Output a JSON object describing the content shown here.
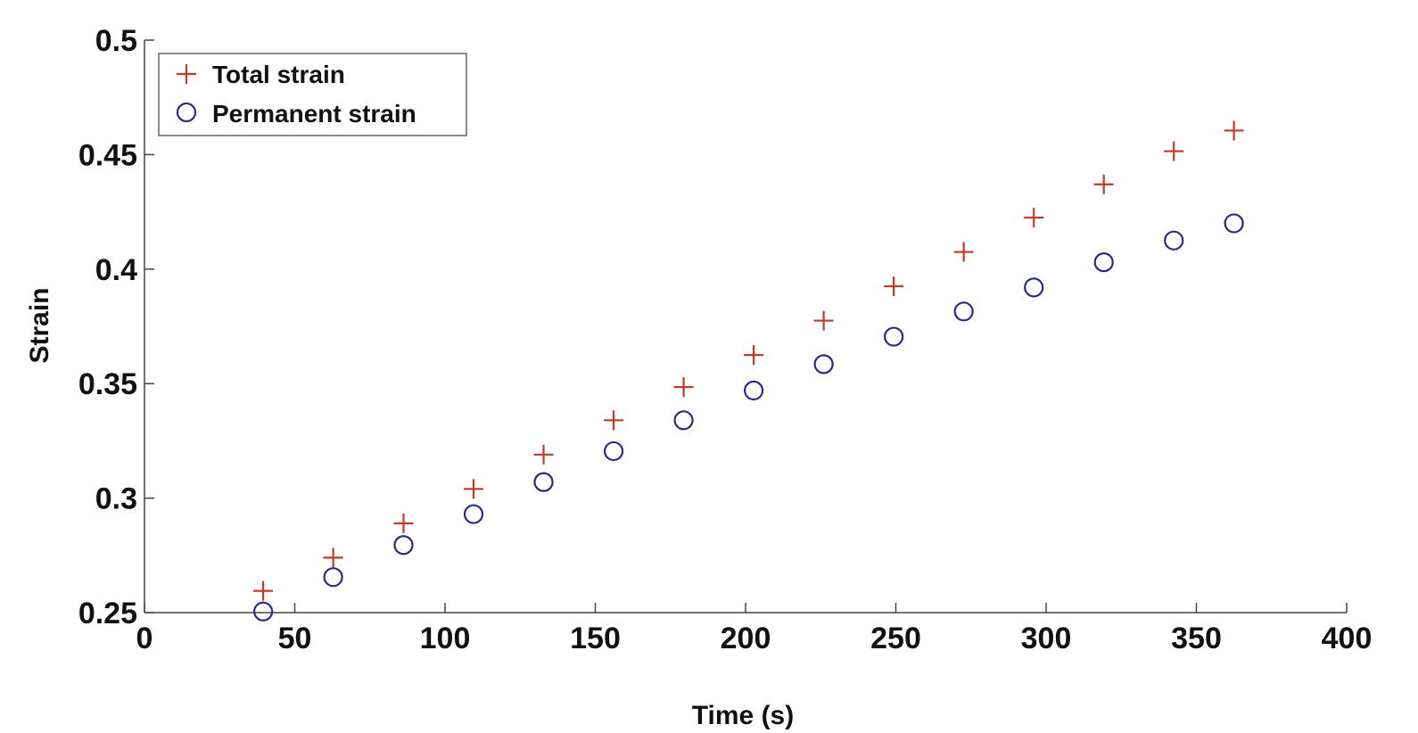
{
  "chart_data": {
    "type": "scatter",
    "title": "",
    "xlabel": "Time (s)",
    "ylabel": "Strain",
    "xlim": [
      0,
      400
    ],
    "ylim": [
      0.25,
      0.5
    ],
    "xticks": [
      0,
      50,
      100,
      150,
      200,
      250,
      300,
      350,
      400
    ],
    "yticks": [
      0.25,
      0.3,
      0.35,
      0.4,
      0.45,
      0.5
    ],
    "xtick_labels": [
      "0",
      "50",
      "100",
      "150",
      "200",
      "250",
      "300",
      "350",
      "400"
    ],
    "ytick_labels": [
      "0.25",
      "0.3",
      "0.35",
      "0.4",
      "0.45",
      "0.5"
    ],
    "grid": false,
    "legend_position": "top-left",
    "series": [
      {
        "name": "Total strain",
        "marker": "plus",
        "color": "#c0392b",
        "x": [
          39.5,
          62.8,
          86.2,
          109.5,
          132.8,
          156.1,
          179.4,
          202.7,
          226.0,
          249.3,
          272.6,
          295.9,
          319.2,
          342.5,
          362.5
        ],
        "y": [
          0.2595,
          0.274,
          0.289,
          0.304,
          0.319,
          0.334,
          0.3485,
          0.3625,
          0.3775,
          0.3925,
          0.4075,
          0.4225,
          0.437,
          0.4515,
          0.4605
        ]
      },
      {
        "name": "Permanent strain",
        "marker": "circle",
        "color": "#2a2a80",
        "x": [
          39.5,
          62.8,
          86.2,
          109.5,
          132.8,
          156.1,
          179.4,
          202.7,
          226.0,
          249.3,
          272.6,
          295.9,
          319.2,
          342.5,
          362.5
        ],
        "y": [
          0.2505,
          0.2655,
          0.2795,
          0.293,
          0.307,
          0.3205,
          0.334,
          0.347,
          0.3585,
          0.3705,
          0.3815,
          0.392,
          0.403,
          0.4125,
          0.42
        ]
      }
    ]
  }
}
